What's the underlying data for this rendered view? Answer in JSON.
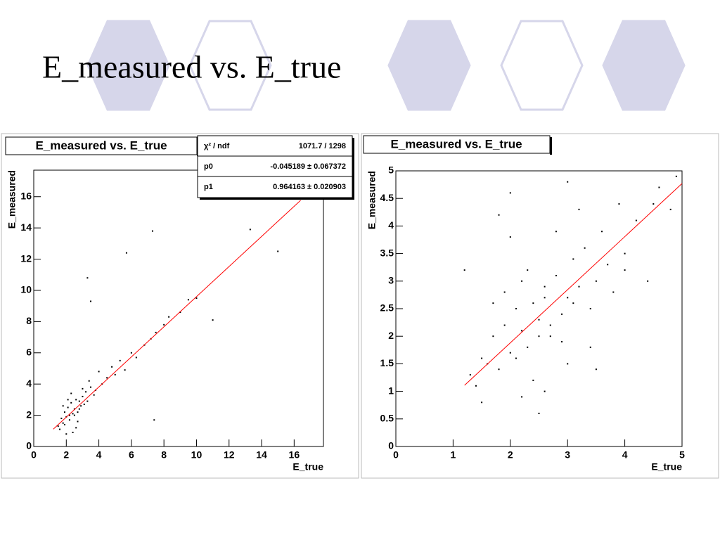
{
  "title": "E_measured vs. E_true",
  "chart_data": [
    {
      "type": "scatter",
      "title": "E_measured vs. E_true",
      "xlabel": "E_true",
      "ylabel": "E_measured",
      "xlim": [
        0,
        17.8
      ],
      "ylim": [
        0,
        17.7
      ],
      "xticks": [
        0,
        2,
        4,
        6,
        8,
        10,
        12,
        14,
        16
      ],
      "yticks": [
        0,
        2,
        4,
        6,
        8,
        10,
        12,
        14,
        16
      ],
      "color": "#000000",
      "x": [
        1.5,
        1.7,
        1.8,
        1.9,
        2.0,
        2.1,
        2.2,
        2.3,
        2.4,
        2.5,
        2.6,
        2.7,
        2.8,
        2.9,
        3.0,
        3.1,
        3.2,
        3.3,
        3.5,
        3.7,
        1.6,
        1.9,
        2.2,
        2.5,
        2.8,
        3.0,
        3.4,
        3.8,
        4.0,
        4.2,
        4.5,
        4.8,
        5.0,
        5.3,
        5.6,
        6.0,
        6.3,
        6.8,
        7.2,
        7.5,
        8.0,
        8.3,
        9.0,
        9.5,
        10.0,
        11.0,
        13.3,
        15.0,
        5.7,
        7.3,
        3.3,
        3.5,
        7.4,
        2.0,
        2.3,
        2.6,
        1.8,
        2.1,
        2.4,
        2.7
      ],
      "y": [
        1.3,
        1.8,
        1.5,
        2.2,
        1.9,
        2.5,
        1.7,
        2.8,
        2.1,
        2.4,
        3.0,
        2.2,
        2.9,
        2.6,
        3.2,
        2.7,
        3.5,
        2.9,
        3.8,
        3.3,
        1.1,
        1.4,
        2.0,
        2.0,
        2.4,
        3.7,
        4.2,
        3.6,
        4.8,
        4.0,
        4.4,
        5.1,
        4.6,
        5.5,
        4.9,
        6.0,
        5.7,
        6.5,
        6.9,
        7.3,
        7.8,
        8.3,
        8.6,
        9.4,
        9.5,
        8.1,
        13.9,
        12.5,
        12.4,
        13.8,
        10.8,
        9.3,
        1.7,
        0.8,
        3.4,
        1.2,
        2.6,
        3.0,
        0.9,
        1.6
      ],
      "fit": {
        "color": "#ff0000",
        "x": [
          1.2,
          16.4
        ],
        "y": [
          1.11,
          15.77
        ]
      },
      "stats": [
        {
          "label": "χ² / ndf",
          "value": "1071.7 / 1298"
        },
        {
          "label": "p0",
          "value": "-0.045189 ± 0.067372"
        },
        {
          "label": "p1",
          "value": "0.964163 ± 0.020903"
        }
      ]
    },
    {
      "type": "scatter",
      "title": "E_measured vs. E_true",
      "xlabel": "E_true",
      "ylabel": "E_measured",
      "xlim": [
        0,
        5
      ],
      "ylim": [
        0,
        5
      ],
      "xticks": [
        0,
        1,
        2,
        3,
        4,
        5
      ],
      "yticks": [
        0,
        0.5,
        1,
        1.5,
        2,
        2.5,
        3,
        3.5,
        4,
        4.5,
        5
      ],
      "color": "#000000",
      "x": [
        1.2,
        1.3,
        1.4,
        1.5,
        1.6,
        1.7,
        1.8,
        1.9,
        2.0,
        2.1,
        2.2,
        2.3,
        2.4,
        2.5,
        2.6,
        2.7,
        2.8,
        2.9,
        3.0,
        3.1,
        3.2,
        3.3,
        3.4,
        3.5,
        3.6,
        3.7,
        3.8,
        3.9,
        4.0,
        4.2,
        4.4,
        4.6,
        4.8,
        4.9,
        1.8,
        2.0,
        2.2,
        2.4,
        2.6,
        2.8,
        3.0,
        3.2,
        3.4,
        1.9,
        2.1,
        2.3,
        2.5,
        2.7,
        2.9,
        3.1,
        1.5,
        2.0,
        2.5,
        3.0,
        3.5,
        4.0,
        4.5,
        2.2,
        2.6,
        1.7
      ],
      "y": [
        3.2,
        1.3,
        1.1,
        1.6,
        1.5,
        2.0,
        1.4,
        2.2,
        1.7,
        2.5,
        2.1,
        1.8,
        2.6,
        2.3,
        2.9,
        2.0,
        3.1,
        2.4,
        2.7,
        3.4,
        2.9,
        3.6,
        2.5,
        3.0,
        3.9,
        3.3,
        2.8,
        4.4,
        3.5,
        4.1,
        3.0,
        4.7,
        4.3,
        4.9,
        4.2,
        4.6,
        0.9,
        1.2,
        1.0,
        3.9,
        1.5,
        4.3,
        1.8,
        2.8,
        1.6,
        3.2,
        2.0,
        2.2,
        1.9,
        2.6,
        0.8,
        3.8,
        0.6,
        4.8,
        1.4,
        3.2,
        4.4,
        3.0,
        2.7,
        2.6
      ],
      "fit": {
        "color": "#ff0000",
        "x": [
          1.2,
          5
        ],
        "y": [
          1.11,
          4.77
        ]
      }
    }
  ]
}
